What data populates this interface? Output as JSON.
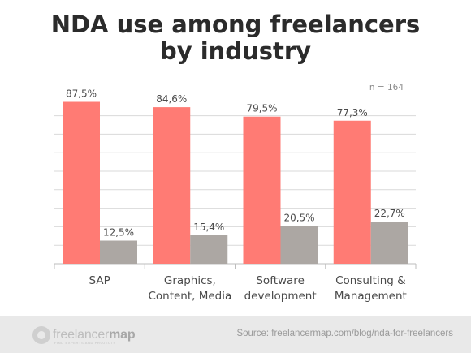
{
  "title_line1": "NDA use among freelancers",
  "title_line2": "by industry",
  "note": "n = 164",
  "footer": {
    "brand_prefix": "freelancer",
    "brand_suffix": "map",
    "tagline": "FIND EXPERTS AND PROJECTS",
    "source": "Source: freelancermap.com/blog/nda-for-freelancers"
  },
  "colors": {
    "series1": "#ff7b74",
    "series2": "#aca7a3",
    "grid": "#d9d9d9",
    "axis": "#bdbdbd",
    "text": "#4a4a4a"
  },
  "chart_data": {
    "type": "bar",
    "title": "NDA use among freelancers by industry",
    "categories": [
      [
        "SAP"
      ],
      [
        "Graphics,",
        "Content, Media"
      ],
      [
        "Software",
        "development"
      ],
      [
        "Consulting &",
        "Management"
      ]
    ],
    "series": [
      {
        "values": [
          87.5,
          84.6,
          79.5,
          77.3
        ],
        "labels": [
          "87,5%",
          "84,6%",
          "79,5%",
          "77,3%"
        ]
      },
      {
        "values": [
          12.5,
          15.4,
          20.5,
          22.7
        ],
        "labels": [
          "12,5%",
          "15,4%",
          "20,5%",
          "22,7%"
        ]
      }
    ],
    "ylim": [
      0,
      100
    ],
    "grid": true,
    "legend": "none"
  }
}
